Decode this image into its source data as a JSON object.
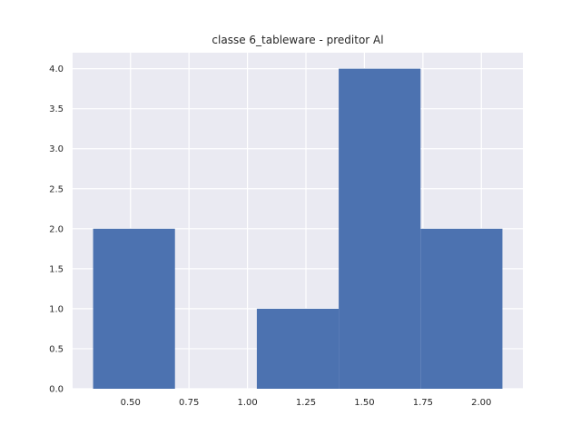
{
  "chart_data": {
    "type": "bar",
    "title": "classe 6_tableware - preditor Al",
    "xlabel": "",
    "ylabel": "",
    "bins": [
      {
        "x0": 0.34,
        "x1": 0.69,
        "value": 2
      },
      {
        "x0": 0.69,
        "x1": 1.04,
        "value": 0
      },
      {
        "x0": 1.04,
        "x1": 1.39,
        "value": 1
      },
      {
        "x0": 1.39,
        "x1": 1.74,
        "value": 4
      },
      {
        "x0": 1.74,
        "x1": 2.09,
        "value": 2
      }
    ],
    "xlim": [
      0.2525,
      2.1775
    ],
    "ylim": [
      0,
      4.2
    ],
    "xticks": [
      0.5,
      0.75,
      1.0,
      1.25,
      1.5,
      1.75,
      2.0
    ],
    "xtick_labels": [
      "0.50",
      "0.75",
      "1.00",
      "1.25",
      "1.50",
      "1.75",
      "2.00"
    ],
    "yticks": [
      0,
      0.5,
      1.0,
      1.5,
      2.0,
      2.5,
      3.0,
      3.5,
      4.0
    ],
    "ytick_labels": [
      "0.0",
      "0.5",
      "1.0",
      "1.5",
      "2.0",
      "2.5",
      "3.0",
      "3.5",
      "4.0"
    ],
    "grid": true,
    "colors": {
      "background": "#eaeaf2",
      "grid": "#ffffff",
      "bar": "#4c72b0",
      "text": "#262626"
    }
  }
}
